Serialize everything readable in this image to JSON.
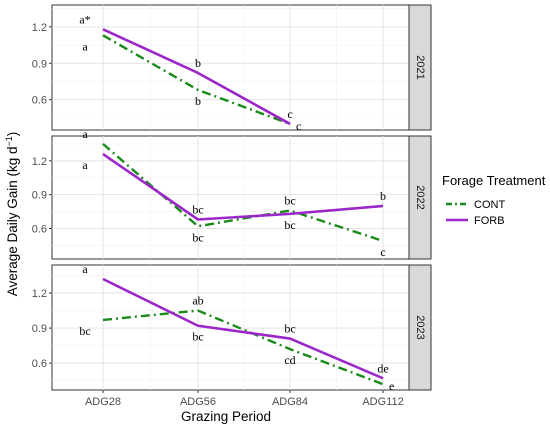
{
  "chart_data": {
    "type": "line",
    "xlabel": "Grazing Period",
    "ylabel": "Average Daily Gain (kg d",
    "ylabel_superscript": "−1",
    "ylabel_suffix": ")",
    "categories": [
      "ADG28",
      "ADG56",
      "ADG84",
      "ADG112"
    ],
    "legend": {
      "title": "Forage Treatment",
      "position": "right"
    },
    "grid": true,
    "colors": {
      "CONT": "#1a8a1a",
      "FORB": "#9b27c9"
    },
    "panels": [
      {
        "strip": "2021",
        "ylim": [
          0.35,
          1.38
        ],
        "yticks": [
          0.6,
          0.9,
          1.2
        ],
        "ytick_labels": [
          "0.6",
          "0.9",
          "1.2"
        ],
        "series": [
          {
            "name": "CONT",
            "values": [
              1.13,
              0.68,
              0.4,
              null
            ],
            "letters": [
              "a",
              "b",
              "c",
              null
            ],
            "letter_pos": [
              "below",
              "below",
              "above",
              null
            ]
          },
          {
            "name": "FORB",
            "values": [
              1.18,
              0.82,
              0.4,
              null
            ],
            "letters": [
              "a*",
              "b",
              "c",
              null
            ],
            "letter_pos": [
              "above",
              "above",
              "right",
              null
            ]
          }
        ]
      },
      {
        "strip": "2022",
        "ylim": [
          0.33,
          1.42
        ],
        "yticks": [
          0.6,
          0.9,
          1.2
        ],
        "ytick_labels": [
          "0.6",
          "0.9",
          "1.2"
        ],
        "series": [
          {
            "name": "CONT",
            "values": [
              1.35,
              0.62,
              0.76,
              0.49
            ],
            "letters": [
              "a",
              "bc",
              "bc",
              "c"
            ],
            "letter_pos": [
              "above",
              "below",
              "above",
              "below"
            ]
          },
          {
            "name": "FORB",
            "values": [
              1.26,
              0.68,
              0.73,
              0.8
            ],
            "letters": [
              "a",
              "bc",
              "bc",
              "b"
            ],
            "letter_pos": [
              "below",
              "above",
              "below",
              "above"
            ]
          }
        ]
      },
      {
        "strip": "2023",
        "ylim": [
          0.37,
          1.44
        ],
        "yticks": [
          0.6,
          0.9,
          1.2
        ],
        "ytick_labels": [
          "0.6",
          "0.9",
          "1.2"
        ],
        "series": [
          {
            "name": "CONT",
            "values": [
              0.97,
              1.05,
              0.72,
              0.42
            ],
            "letters": [
              "bc",
              "ab",
              "cd",
              "e"
            ],
            "letter_pos": [
              "below",
              "above",
              "below",
              "right"
            ]
          },
          {
            "name": "FORB",
            "values": [
              1.32,
              0.92,
              0.81,
              0.47
            ],
            "letters": [
              "a",
              "bc",
              "bc",
              "de"
            ],
            "letter_pos": [
              "above",
              "below",
              "above",
              "above"
            ]
          }
        ]
      }
    ]
  }
}
